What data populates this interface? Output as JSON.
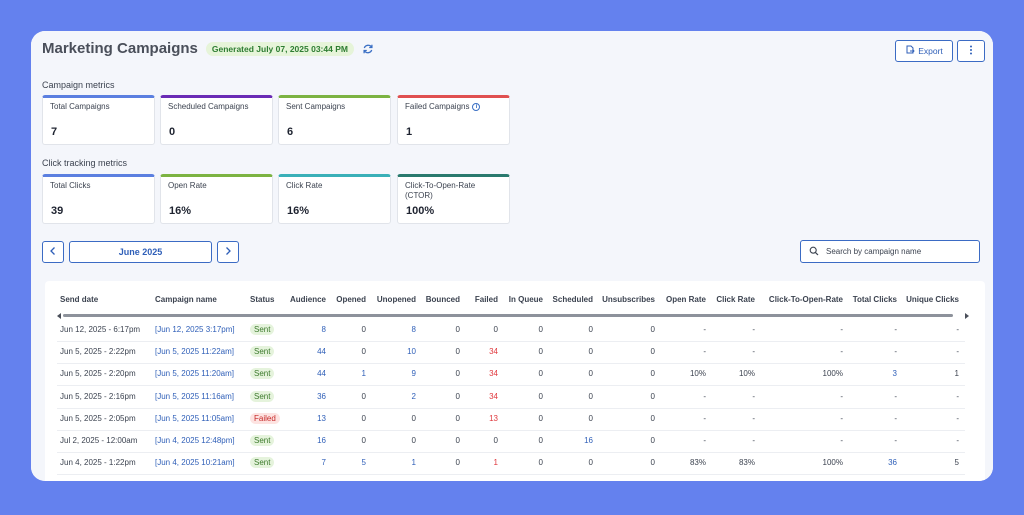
{
  "header": {
    "title": "Marketing Campaigns",
    "generated": "Generated July 07, 2025 03:44 PM",
    "export_label": "Export"
  },
  "campaign_metrics": {
    "label": "Campaign metrics",
    "cards": [
      {
        "label": "Total Campaigns",
        "value": "7",
        "color": "#5b7fe0"
      },
      {
        "label": "Scheduled Campaigns",
        "value": "0",
        "color": "#6a2bb5"
      },
      {
        "label": "Sent Campaigns",
        "value": "6",
        "color": "#7cb342"
      },
      {
        "label": "Failed Campaigns",
        "value": "1",
        "color": "#e05050"
      }
    ]
  },
  "click_metrics": {
    "label": "Click tracking metrics",
    "cards": [
      {
        "label": "Total Clicks",
        "value": "39",
        "color": "#5b7fe0"
      },
      {
        "label": "Open Rate",
        "value": "16%",
        "color": "#7cb342"
      },
      {
        "label": "Click Rate",
        "value": "16%",
        "color": "#3ab0b8"
      },
      {
        "label": "Click-To-Open-Rate (CTOR)",
        "value": "100%",
        "color": "#2a7a6e"
      }
    ]
  },
  "period": {
    "month": "June 2025"
  },
  "search": {
    "placeholder": "Search by campaign name"
  },
  "table": {
    "headers": [
      "Send date",
      "Campaign name",
      "Status",
      "Audience",
      "Opened",
      "Unopened",
      "Bounced",
      "Failed",
      "In Queue",
      "Scheduled",
      "Unsubscribes",
      "Open Rate",
      "Click Rate",
      "Click-To-Open-Rate",
      "Total Clicks",
      "Unique Clicks"
    ],
    "rows": [
      [
        "Jun 12, 2025 - 6:17pm",
        "[Jun 12, 2025 3:17pm]",
        "Sent",
        "8",
        "0",
        "8",
        "0",
        "0",
        "0",
        "0",
        "0",
        "-",
        "-",
        "-",
        "-",
        "-"
      ],
      [
        "Jun 5, 2025 - 2:22pm",
        "[Jun 5, 2025 11:22am]",
        "Sent",
        "44",
        "0",
        "10",
        "0",
        "34",
        "0",
        "0",
        "0",
        "-",
        "-",
        "-",
        "-",
        "-"
      ],
      [
        "Jun 5, 2025 - 2:20pm",
        "[Jun 5, 2025 11:20am]",
        "Sent",
        "44",
        "1",
        "9",
        "0",
        "34",
        "0",
        "0",
        "0",
        "10%",
        "10%",
        "100%",
        "3",
        "1"
      ],
      [
        "Jun 5, 2025 - 2:16pm",
        "[Jun 5, 2025 11:16am]",
        "Sent",
        "36",
        "0",
        "2",
        "0",
        "34",
        "0",
        "0",
        "0",
        "-",
        "-",
        "-",
        "-",
        "-"
      ],
      [
        "Jun 5, 2025 - 2:05pm",
        "[Jun 5, 2025 11:05am]",
        "Failed",
        "13",
        "0",
        "0",
        "0",
        "13",
        "0",
        "0",
        "0",
        "-",
        "-",
        "-",
        "-",
        "-"
      ],
      [
        "Jul 2, 2025 - 12:00am",
        "[Jun 4, 2025 12:48pm]",
        "Sent",
        "16",
        "0",
        "0",
        "0",
        "0",
        "0",
        "16",
        "0",
        "-",
        "-",
        "-",
        "-",
        "-"
      ],
      [
        "Jun 4, 2025 - 1:22pm",
        "[Jun 4, 2025 10:21am]",
        "Sent",
        "7",
        "5",
        "1",
        "0",
        "1",
        "0",
        "0",
        "0",
        "83%",
        "83%",
        "100%",
        "36",
        "5"
      ]
    ]
  }
}
